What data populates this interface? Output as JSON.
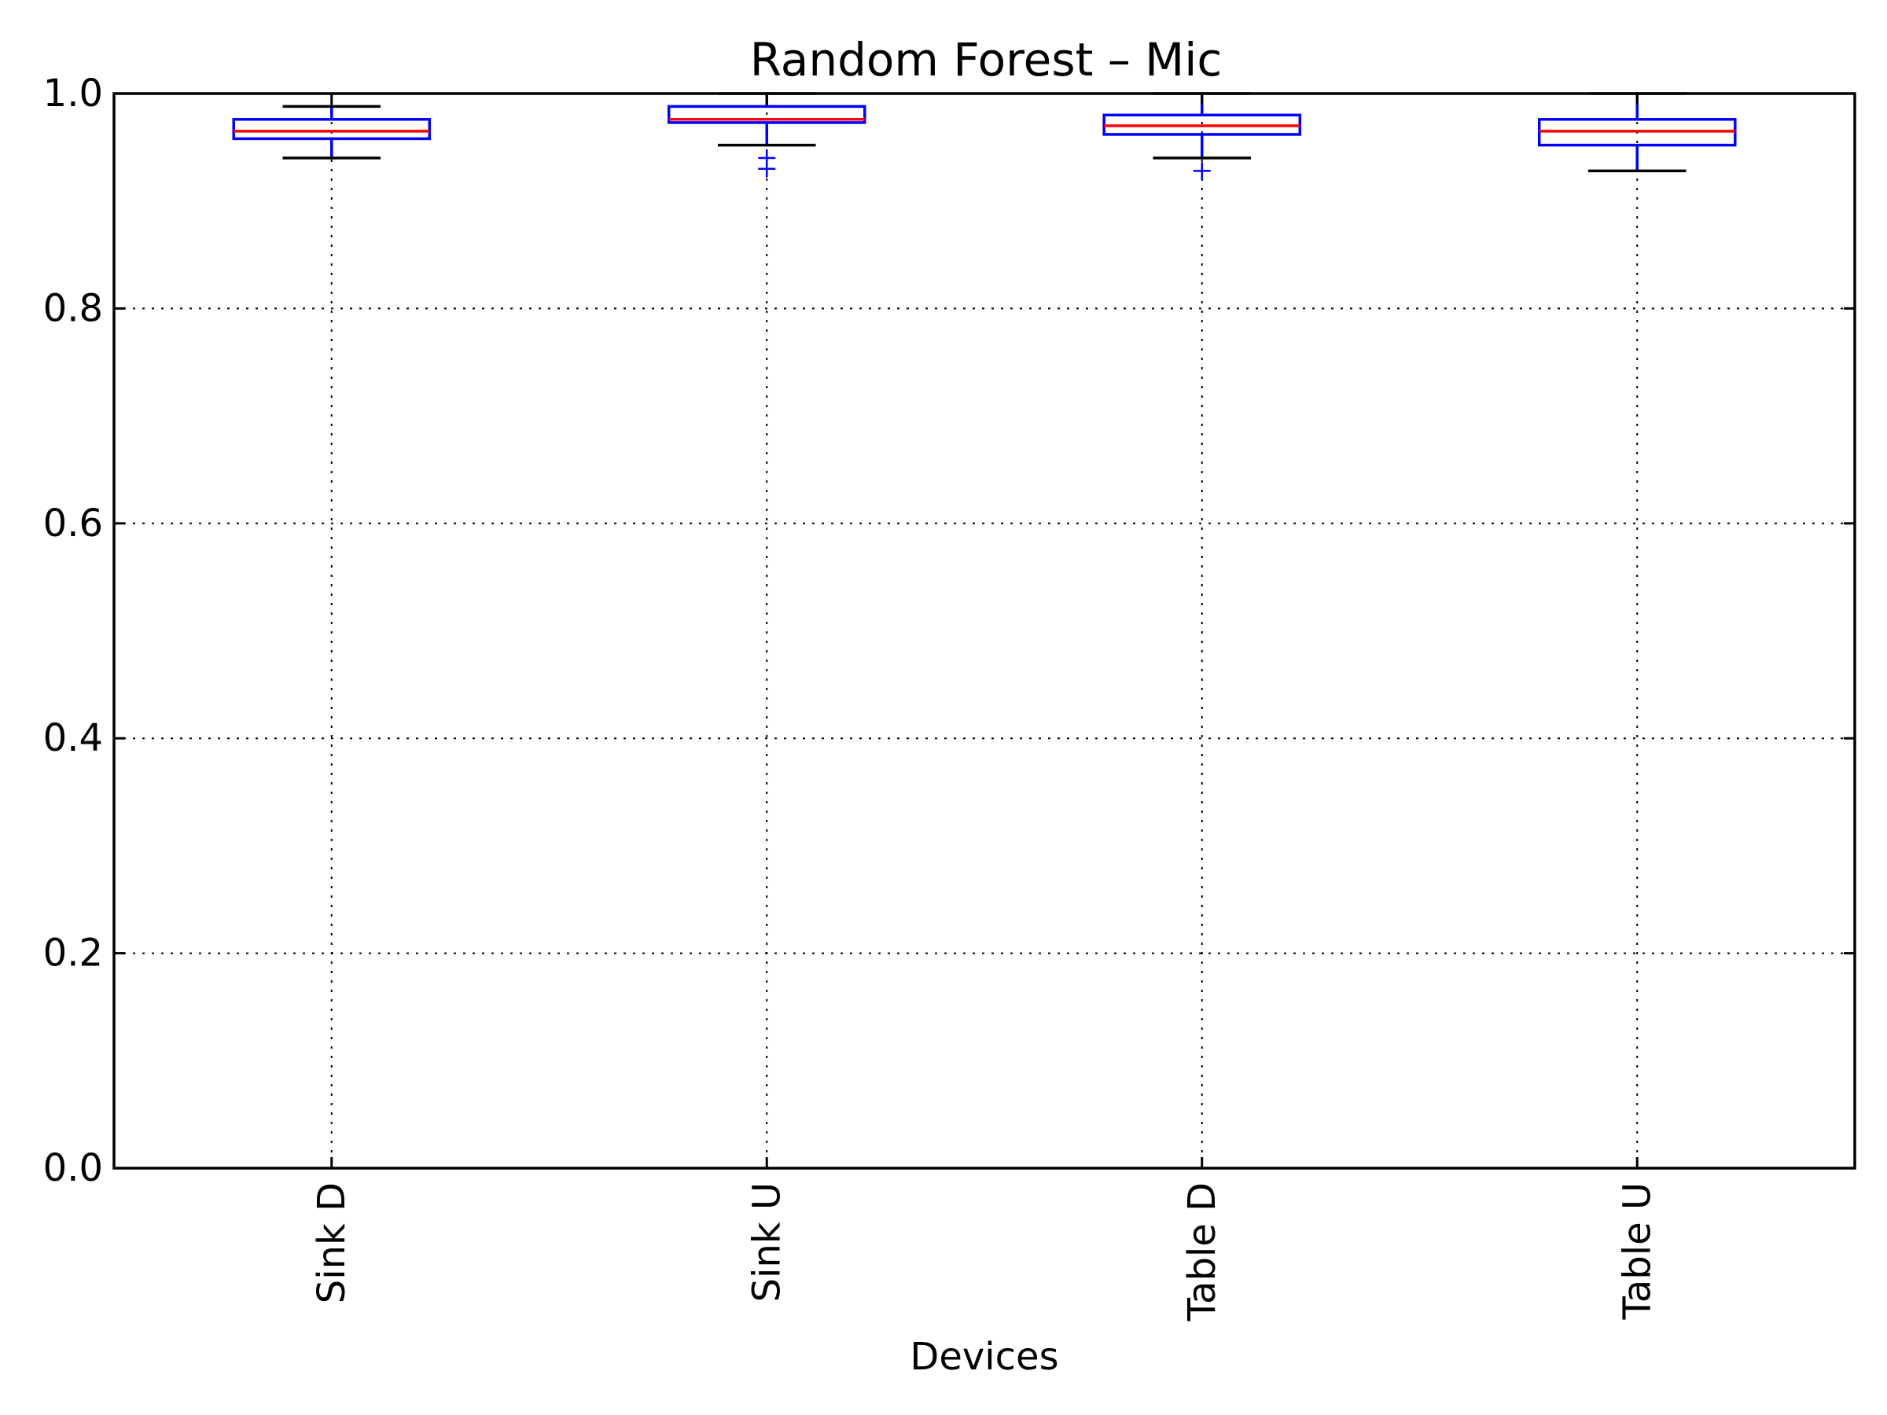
{
  "chart_data": {
    "type": "boxplot",
    "title": "Random Forest – Mic",
    "xlabel": "Devices",
    "ylabel": "",
    "ylim": [
      0.0,
      1.0
    ],
    "yticks": [
      "0.0",
      "0.2",
      "0.4",
      "0.6",
      "0.8",
      "1.0"
    ],
    "grid": true,
    "categories": [
      "Sink D",
      "Sink U",
      "Table D",
      "Table U"
    ],
    "boxes": [
      {
        "name": "Sink D",
        "whisker_low": 0.94,
        "q1": 0.958,
        "median": 0.965,
        "q3": 0.976,
        "whisker_high": 0.988,
        "fliers": []
      },
      {
        "name": "Sink U",
        "whisker_low": 0.952,
        "q1": 0.973,
        "median": 0.976,
        "q3": 0.988,
        "whisker_high": 1.0,
        "fliers": [
          0.94,
          0.93
        ]
      },
      {
        "name": "Table D",
        "whisker_low": 0.94,
        "q1": 0.962,
        "median": 0.97,
        "q3": 0.98,
        "whisker_high": 1.0,
        "fliers": [
          0.928
        ]
      },
      {
        "name": "Table U",
        "whisker_low": 0.928,
        "q1": 0.952,
        "median": 0.965,
        "q3": 0.976,
        "whisker_high": 1.0,
        "fliers": []
      }
    ],
    "colors": {
      "box": "#0000ff",
      "median": "#ff0000",
      "cap": "#000000"
    }
  }
}
